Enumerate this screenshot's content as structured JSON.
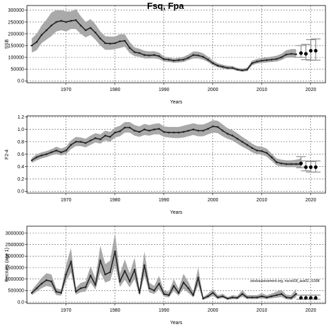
{
  "title": "Fsq, Fpa",
  "annotation": "stockassessment.org, nscod18_ass02, r1008",
  "chart_data": [
    {
      "type": "line",
      "ylabel": "SSB",
      "xlabel": "Years",
      "xlim": [
        1962,
        2023
      ],
      "ylim": [
        -8000,
        320000
      ],
      "xticks": [
        1970,
        1980,
        1990,
        2000,
        2010,
        2020
      ],
      "yticks": [
        0,
        50000,
        100000,
        150000,
        200000,
        250000,
        300000
      ],
      "grid": true,
      "series": [
        {
          "x": [
            1963,
            1964,
            1965,
            1966,
            1967,
            1968,
            1969,
            1970,
            1971,
            1972,
            1973,
            1974,
            1975,
            1976,
            1977,
            1978,
            1979,
            1980,
            1981,
            1982,
            1983,
            1984,
            1985,
            1986,
            1987,
            1988,
            1989,
            1990,
            1991,
            1992,
            1993,
            1994,
            1995,
            1996,
            1997,
            1998,
            1999,
            2000,
            2001,
            2002,
            2003,
            2004,
            2005,
            2006,
            2007,
            2008,
            2009,
            2010,
            2011,
            2012,
            2013,
            2014,
            2015,
            2016,
            2017
          ],
          "values": [
            150000,
            165000,
            195000,
            215000,
            235000,
            250000,
            255000,
            250000,
            255000,
            258000,
            235000,
            215000,
            225000,
            205000,
            180000,
            160000,
            158000,
            160000,
            168000,
            170000,
            140000,
            122000,
            118000,
            110000,
            108000,
            110000,
            105000,
            92000,
            90000,
            86000,
            88000,
            90000,
            98000,
            110000,
            108000,
            102000,
            90000,
            75000,
            65000,
            60000,
            55000,
            55000,
            48000,
            45000,
            48000,
            75000,
            82000,
            86000,
            88000,
            90000,
            93000,
            100000,
            112000,
            115000,
            113000
          ],
          "lower": [
            120000,
            130000,
            160000,
            175000,
            190000,
            210000,
            215000,
            210000,
            220000,
            220000,
            200000,
            185000,
            195000,
            175000,
            150000,
            132000,
            132000,
            135000,
            140000,
            145000,
            118000,
            105000,
            102000,
            95000,
            95000,
            96000,
            92000,
            82000,
            80000,
            77000,
            78000,
            80000,
            88000,
            95000,
            95000,
            90000,
            80000,
            66000,
            57000,
            52000,
            48000,
            48000,
            42000,
            39000,
            41000,
            66000,
            73000,
            76000,
            78000,
            80000,
            82000,
            88000,
            98000,
            100000,
            97000
          ],
          "upper": [
            180000,
            200000,
            235000,
            260000,
            290000,
            300000,
            300000,
            295000,
            295000,
            305000,
            275000,
            250000,
            262000,
            240000,
            210000,
            190000,
            188000,
            188000,
            198000,
            198000,
            165000,
            142000,
            136000,
            128000,
            125000,
            126000,
            120000,
            103000,
            100000,
            95000,
            98000,
            102000,
            112000,
            125000,
            124000,
            117000,
            103000,
            87000,
            75000,
            69000,
            64000,
            63000,
            55000,
            52000,
            56000,
            86000,
            93000,
            97000,
            100000,
            103000,
            107000,
            115000,
            130000,
            135000,
            135000
          ]
        }
      ],
      "forecast": {
        "x": [
          2018,
          2019,
          2020,
          2021
        ],
        "values": [
          118000,
          115000,
          128000,
          128000
        ],
        "lower": [
          100000,
          90000,
          88000,
          88000
        ],
        "upper": [
          150000,
          155000,
          175000,
          178000
        ]
      }
    },
    {
      "type": "line",
      "ylabel": "F2-4",
      "xlabel": "Years",
      "xlim": [
        1962,
        2023
      ],
      "ylim": [
        -0.03,
        1.22
      ],
      "xticks": [
        1970,
        1980,
        1990,
        2000,
        2010,
        2020
      ],
      "yticks": [
        0.0,
        0.2,
        0.4,
        0.6,
        0.8,
        1.0,
        1.2
      ],
      "grid": true,
      "series": [
        {
          "x": [
            1963,
            1964,
            1965,
            1966,
            1967,
            1968,
            1969,
            1970,
            1971,
            1972,
            1973,
            1974,
            1975,
            1976,
            1977,
            1978,
            1979,
            1980,
            1981,
            1982,
            1983,
            1984,
            1985,
            1986,
            1987,
            1988,
            1989,
            1990,
            1991,
            1992,
            1993,
            1994,
            1995,
            1996,
            1997,
            1998,
            1999,
            2000,
            2001,
            2002,
            2003,
            2004,
            2005,
            2006,
            2007,
            2008,
            2009,
            2010,
            2011,
            2012,
            2013,
            2014,
            2015,
            2016,
            2017,
            2018
          ],
          "values": [
            0.5,
            0.55,
            0.58,
            0.6,
            0.63,
            0.66,
            0.63,
            0.66,
            0.75,
            0.8,
            0.8,
            0.78,
            0.82,
            0.86,
            0.84,
            0.9,
            0.88,
            0.95,
            0.97,
            1.03,
            1.03,
            0.98,
            0.96,
            1.0,
            0.98,
            1.0,
            1.01,
            0.96,
            0.95,
            0.95,
            0.95,
            0.96,
            0.98,
            1.0,
            0.98,
            0.98,
            1.01,
            1.05,
            1.04,
            0.98,
            0.93,
            0.9,
            0.85,
            0.8,
            0.75,
            0.7,
            0.66,
            0.65,
            0.62,
            0.55,
            0.47,
            0.45,
            0.44,
            0.44,
            0.44,
            0.44
          ],
          "lower": [
            0.46,
            0.5,
            0.53,
            0.55,
            0.58,
            0.6,
            0.58,
            0.6,
            0.68,
            0.73,
            0.73,
            0.71,
            0.75,
            0.79,
            0.77,
            0.82,
            0.8,
            0.87,
            0.89,
            0.95,
            0.95,
            0.9,
            0.88,
            0.91,
            0.9,
            0.92,
            0.92,
            0.88,
            0.87,
            0.86,
            0.86,
            0.87,
            0.89,
            0.91,
            0.89,
            0.89,
            0.92,
            0.95,
            0.94,
            0.89,
            0.85,
            0.82,
            0.77,
            0.72,
            0.68,
            0.63,
            0.6,
            0.59,
            0.56,
            0.49,
            0.42,
            0.4,
            0.39,
            0.39,
            0.39,
            0.38
          ],
          "upper": [
            0.54,
            0.6,
            0.63,
            0.65,
            0.68,
            0.72,
            0.69,
            0.72,
            0.82,
            0.88,
            0.87,
            0.85,
            0.9,
            0.94,
            0.92,
            0.98,
            0.96,
            1.03,
            1.06,
            1.12,
            1.12,
            1.07,
            1.05,
            1.09,
            1.07,
            1.09,
            1.1,
            1.05,
            1.04,
            1.04,
            1.04,
            1.06,
            1.08,
            1.1,
            1.08,
            1.08,
            1.11,
            1.15,
            1.14,
            1.08,
            1.02,
            0.99,
            0.94,
            0.88,
            0.83,
            0.77,
            0.73,
            0.72,
            0.69,
            0.61,
            0.53,
            0.51,
            0.5,
            0.5,
            0.51,
            0.53
          ]
        }
      ],
      "forecast": {
        "x": [
          2018,
          2019,
          2020,
          2021
        ],
        "values": [
          0.45,
          0.39,
          0.39,
          0.39
        ],
        "lower": [
          0.38,
          0.33,
          0.31,
          0.31
        ],
        "upper": [
          0.56,
          0.49,
          0.48,
          0.49
        ]
      }
    },
    {
      "type": "line",
      "ylabel": "Recruits (age 1)",
      "xlabel": "Years",
      "xlim": [
        1962,
        2023
      ],
      "ylim": [
        -60000,
        3300000
      ],
      "xticks": [
        1970,
        1980,
        1990,
        2000,
        2010,
        2020
      ],
      "yticks": [
        0,
        500000,
        1000000,
        1500000,
        2000000,
        2500000,
        3000000
      ],
      "grid": true,
      "series": [
        {
          "x": [
            1963,
            1964,
            1965,
            1966,
            1967,
            1968,
            1969,
            1970,
            1971,
            1972,
            1973,
            1974,
            1975,
            1976,
            1977,
            1978,
            1979,
            1980,
            1981,
            1982,
            1983,
            1984,
            1985,
            1986,
            1987,
            1988,
            1989,
            1990,
            1991,
            1992,
            1993,
            1994,
            1995,
            1996,
            1997,
            1998,
            1999,
            2000,
            2001,
            2002,
            2003,
            2004,
            2005,
            2006,
            2007,
            2008,
            2009,
            2010,
            2011,
            2012,
            2013,
            2014,
            2015,
            2016,
            2017
          ],
          "values": [
            400000,
            600000,
            800000,
            950000,
            900000,
            450000,
            400000,
            1200000,
            1750000,
            450000,
            600000,
            650000,
            1150000,
            750000,
            1800000,
            1200000,
            1300000,
            2200000,
            900000,
            1350000,
            900000,
            1400000,
            400000,
            1600000,
            600000,
            500000,
            800000,
            350000,
            300000,
            700000,
            400000,
            850000,
            600000,
            300000,
            1050000,
            150000,
            250000,
            400000,
            200000,
            250000,
            150000,
            200000,
            180000,
            350000,
            200000,
            200000,
            200000,
            250000,
            200000,
            250000,
            300000,
            350000,
            200000,
            180000,
            350000
          ],
          "lower": [
            300000,
            450000,
            600000,
            700000,
            650000,
            300000,
            280000,
            900000,
            1300000,
            320000,
            430000,
            460000,
            850000,
            540000,
            1300000,
            850000,
            930000,
            1600000,
            650000,
            970000,
            640000,
            1000000,
            280000,
            1150000,
            420000,
            350000,
            560000,
            240000,
            200000,
            480000,
            270000,
            580000,
            400000,
            200000,
            720000,
            100000,
            170000,
            270000,
            130000,
            170000,
            100000,
            130000,
            120000,
            230000,
            130000,
            130000,
            130000,
            160000,
            130000,
            160000,
            190000,
            220000,
            120000,
            100000,
            200000
          ],
          "upper": [
            520000,
            780000,
            1050000,
            1250000,
            1200000,
            600000,
            540000,
            1600000,
            2350000,
            620000,
            830000,
            900000,
            1550000,
            1030000,
            2450000,
            1650000,
            1800000,
            3000000,
            1230000,
            1850000,
            1250000,
            1930000,
            560000,
            2200000,
            850000,
            700000,
            1130000,
            500000,
            440000,
            1000000,
            580000,
            1230000,
            880000,
            440000,
            1500000,
            220000,
            360000,
            580000,
            300000,
            360000,
            220000,
            300000,
            270000,
            520000,
            300000,
            300000,
            300000,
            380000,
            300000,
            370000,
            450000,
            530000,
            320000,
            300000,
            580000
          ]
        }
      ],
      "forecast": {
        "x": [
          2018,
          2019,
          2020,
          2021
        ],
        "values": [
          180000,
          180000,
          180000,
          180000
        ],
        "lower": [
          120000,
          120000,
          120000,
          120000
        ],
        "upper": [
          300000,
          300000,
          300000,
          300000
        ]
      }
    }
  ]
}
